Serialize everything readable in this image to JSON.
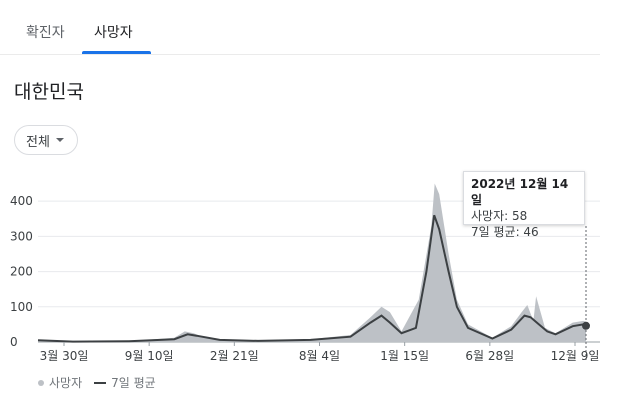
{
  "tabs": [
    {
      "label": "확진자",
      "active": false
    },
    {
      "label": "사망자",
      "active": true
    }
  ],
  "region_title": "대한민국",
  "filter": {
    "selected": "전체"
  },
  "tooltip": {
    "date": "2022년 12월 14일",
    "deaths_line": "사망자: 58",
    "avg_line": "7일 평균: 46"
  },
  "legend": {
    "daily_label": "사망자",
    "avg_label": "7일 평균"
  },
  "colors": {
    "accent": "#1a73e8",
    "bar": "#bdc1c6",
    "avg_line": "#3c4043"
  },
  "chart_data": {
    "type": "area",
    "y_ticks": [
      "0",
      "100",
      "200",
      "300",
      "400"
    ],
    "ylim": [
      0,
      460
    ],
    "x_tick_labels": [
      "3월 30일",
      "9월 10일",
      "2월 21일",
      "8월 4일",
      "1월 15일",
      "6월 28일",
      "12월 9일"
    ],
    "x_start": "2020-03-30",
    "x_end": "2022-12-14",
    "grid": true,
    "legend_position": "bottom-left",
    "highlight": {
      "date": "2022-12-14",
      "value": 46
    },
    "series": [
      {
        "name": "사망자",
        "kind": "daily",
        "points": [
          [
            "2020-03-30",
            5
          ],
          [
            "2020-06-01",
            1
          ],
          [
            "2020-09-10",
            2
          ],
          [
            "2020-12-01",
            12
          ],
          [
            "2020-12-20",
            30
          ],
          [
            "2021-01-05",
            25
          ],
          [
            "2021-01-25",
            12
          ],
          [
            "2021-02-21",
            8
          ],
          [
            "2021-05-01",
            4
          ],
          [
            "2021-08-04",
            8
          ],
          [
            "2021-10-15",
            20
          ],
          [
            "2021-11-20",
            70
          ],
          [
            "2021-12-10",
            100
          ],
          [
            "2021-12-25",
            85
          ],
          [
            "2022-01-15",
            30
          ],
          [
            "2022-02-15",
            120
          ],
          [
            "2022-03-10",
            330
          ],
          [
            "2022-03-16",
            450
          ],
          [
            "2022-03-24",
            420
          ],
          [
            "2022-04-10",
            250
          ],
          [
            "2022-04-25",
            120
          ],
          [
            "2022-05-15",
            50
          ],
          [
            "2022-06-28",
            12
          ],
          [
            "2022-08-01",
            45
          ],
          [
            "2022-08-20",
            85
          ],
          [
            "2022-08-30",
            105
          ],
          [
            "2022-09-10",
            60
          ],
          [
            "2022-09-15",
            130
          ],
          [
            "2022-10-01",
            40
          ],
          [
            "2022-10-20",
            25
          ],
          [
            "2022-11-20",
            55
          ],
          [
            "2022-12-09",
            60
          ],
          [
            "2022-12-14",
            58
          ]
        ]
      },
      {
        "name": "7일 평균",
        "kind": "average",
        "points": [
          [
            "2020-03-30",
            5
          ],
          [
            "2020-06-01",
            1
          ],
          [
            "2020-09-10",
            2
          ],
          [
            "2020-12-01",
            8
          ],
          [
            "2020-12-25",
            22
          ],
          [
            "2021-01-10",
            18
          ],
          [
            "2021-02-21",
            6
          ],
          [
            "2021-05-01",
            3
          ],
          [
            "2021-08-04",
            6
          ],
          [
            "2021-10-15",
            15
          ],
          [
            "2021-11-20",
            55
          ],
          [
            "2021-12-10",
            75
          ],
          [
            "2021-12-25",
            55
          ],
          [
            "2022-01-15",
            25
          ],
          [
            "2022-02-10",
            40
          ],
          [
            "2022-03-01",
            200
          ],
          [
            "2022-03-15",
            360
          ],
          [
            "2022-03-24",
            320
          ],
          [
            "2022-04-10",
            200
          ],
          [
            "2022-04-25",
            100
          ],
          [
            "2022-05-15",
            40
          ],
          [
            "2022-06-28",
            10
          ],
          [
            "2022-08-01",
            35
          ],
          [
            "2022-08-25",
            75
          ],
          [
            "2022-09-05",
            70
          ],
          [
            "2022-09-20",
            50
          ],
          [
            "2022-10-05",
            30
          ],
          [
            "2022-10-20",
            22
          ],
          [
            "2022-11-20",
            45
          ],
          [
            "2022-12-09",
            50
          ],
          [
            "2022-12-14",
            46
          ]
        ]
      }
    ]
  }
}
